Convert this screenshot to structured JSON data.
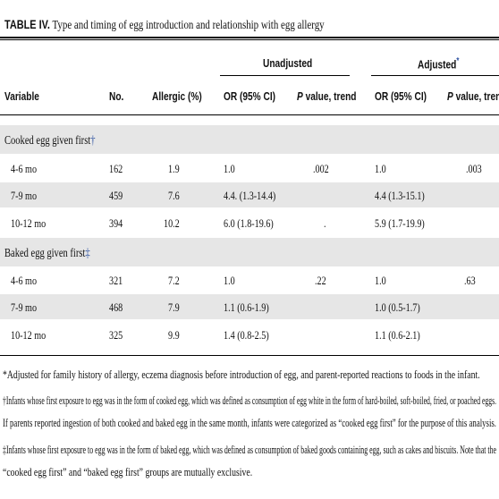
{
  "table": {
    "title_label": "TABLE IV.",
    "title_text": " Type and timing of egg introduction and relationship with egg allergy",
    "group_unadjusted": "Unadjusted",
    "group_adjusted": "Adjusted",
    "adjusted_mark": "*",
    "columns": {
      "variable": "Variable",
      "no": "No.",
      "allergic": "Allergic (%)",
      "or_unadj": "OR (95% CI)",
      "p_unadj_italic": "P",
      "p_unadj_rest": " value, trend",
      "or_adj": "OR (95% CI)",
      "p_adj_italic": "P",
      "p_adj_rest": " value, trend"
    },
    "sections": [
      {
        "label": "Cooked egg given first",
        "mark": "†",
        "rows": [
          {
            "variable": "4-6 mo",
            "no": "162",
            "allergic": "1.9",
            "or_unadj": "1.0",
            "p_unadj": ".002",
            "or_adj": "1.0",
            "p_adj": ".003"
          },
          {
            "variable": "7-9 mo",
            "no": "459",
            "allergic": "7.6",
            "or_unadj": "4.4. (1.3-14.4)",
            "p_unadj": "",
            "or_adj": "4.4 (1.3-15.1)",
            "p_adj": ""
          },
          {
            "variable": "10-12 mo",
            "no": "394",
            "allergic": "10.2",
            "or_unadj": "6.0 (1.8-19.6)",
            "p_unadj": ".",
            "or_adj": "5.9 (1.7-19.9)",
            "p_adj": ""
          }
        ]
      },
      {
        "label": "Baked egg given first",
        "mark": "‡",
        "rows": [
          {
            "variable": "4-6 mo",
            "no": "321",
            "allergic": "7.2",
            "or_unadj": "1.0",
            "p_unadj": ".22",
            "or_adj": "1.0",
            "p_adj": ".63"
          },
          {
            "variable": "7-9 mo",
            "no": "468",
            "allergic": "7.9",
            "or_unadj": "1.1 (0.6-1.9)",
            "p_unadj": "",
            "or_adj": "1.0 (0.5-1.7)",
            "p_adj": ""
          },
          {
            "variable": "10-12 mo",
            "no": "325",
            "allergic": "9.9",
            "or_unadj": "1.4 (0.8-2.5)",
            "p_unadj": "",
            "or_adj": "1.1 (0.6-2.1)",
            "p_adj": ""
          }
        ]
      }
    ],
    "footnotes": [
      "*Adjusted for family history of allergy, eczema diagnosis before introduction of egg, and parent-reported reactions to foods in the infant.",
      "†Infants whose first exposure to egg was in the form of cooked egg, which was defined as consumption of egg white in the form of hard-boiled, soft-boiled, fried, or poached eggs.",
      "If parents reported ingestion of both cooked and baked egg in the same month, infants were categorized as “cooked egg first” for the purpose of this analysis.",
      "‡Infants whose first exposure to egg was in the form of baked egg, which was defined as consumption of baked goods containing egg, such as cakes and biscuits. Note that the",
      "“cooked egg first” and “baked egg first” groups are mutually exclusive."
    ]
  }
}
